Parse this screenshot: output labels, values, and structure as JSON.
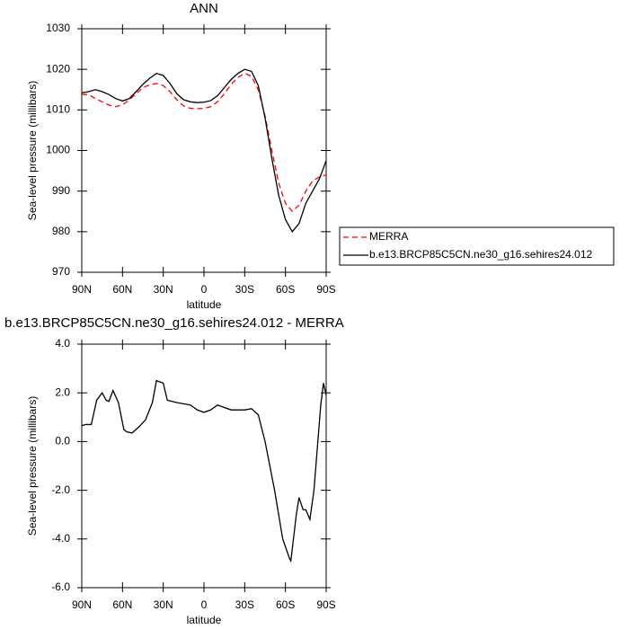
{
  "chart_data": [
    {
      "type": "line",
      "title": "ANN",
      "x_label": "latitude",
      "y_label": "Sea-level pressure (millibars)",
      "x": [
        90,
        85,
        80,
        75,
        70,
        65,
        60,
        55,
        50,
        45,
        40,
        35,
        30,
        25,
        20,
        15,
        10,
        5,
        0,
        -5,
        -10,
        -15,
        -20,
        -25,
        -30,
        -35,
        -40,
        -45,
        -50,
        -55,
        -60,
        -65,
        -70,
        -75,
        -80,
        -85,
        -90
      ],
      "xlim": [
        90,
        -90
      ],
      "xticks": [
        {
          "value": 90,
          "label": "90N"
        },
        {
          "value": 60,
          "label": "60N"
        },
        {
          "value": 30,
          "label": "30N"
        },
        0,
        {
          "value": -30,
          "label": "30S"
        },
        {
          "value": -60,
          "label": "60S"
        },
        {
          "value": -90,
          "label": "90S"
        }
      ],
      "ylim": [
        970,
        1030
      ],
      "yticks": [
        970,
        980,
        990,
        1000,
        1010,
        1020,
        1030
      ],
      "legend": "right",
      "series": [
        {
          "name": "MERRA",
          "color": "#ff0000",
          "dash": true,
          "values": [
            1013.8,
            1013.8,
            1012.8,
            1012,
            1011.2,
            1010.8,
            1011.2,
            1012.5,
            1014,
            1015.5,
            1016.2,
            1016.5,
            1016,
            1014.5,
            1012.5,
            1011,
            1010.4,
            1010.3,
            1010.4,
            1010.8,
            1012,
            1014,
            1016.3,
            1018,
            1019,
            1018.3,
            1015,
            1008.5,
            1000,
            992,
            987,
            985,
            986.5,
            990,
            992.5,
            993.5,
            994
          ]
        },
        {
          "name": "b.e13.BRCP85C5CN.ne30_g16.sehires24.012",
          "color": "#000000",
          "dash": false,
          "values": [
            1014.2,
            1014.5,
            1015,
            1014.5,
            1013.8,
            1012.8,
            1012.2,
            1012.8,
            1014.5,
            1016.3,
            1017.8,
            1019,
            1018.5,
            1016.5,
            1014,
            1012.5,
            1012,
            1011.8,
            1011.9,
            1012.3,
            1013.5,
            1015.5,
            1017.5,
            1019,
            1020,
            1019.5,
            1016,
            1008,
            998,
            989,
            983,
            980,
            982,
            987,
            990,
            993,
            997.5
          ]
        }
      ]
    },
    {
      "type": "line",
      "title": "b.e13.BRCP85C5CN.ne30_g16.sehires24.012 - MERRA",
      "x_label": "latitude",
      "y_label": "Sea-level pressure (millibars)",
      "x": [
        90,
        87,
        83,
        79,
        75,
        72,
        70,
        67,
        63,
        59,
        57,
        53,
        48,
        43,
        38,
        35,
        30,
        27,
        20,
        10,
        5,
        0,
        -5,
        -10,
        -15,
        -20,
        -30,
        -35,
        -40,
        -45,
        -52,
        -58,
        -63,
        -64,
        -68,
        -70,
        -73,
        -75,
        -78,
        -81,
        -86,
        -88,
        -90
      ],
      "xlim": [
        90,
        -90
      ],
      "xticks": [
        {
          "value": 90,
          "label": "90N"
        },
        {
          "value": 60,
          "label": "60N"
        },
        {
          "value": 30,
          "label": "30N"
        },
        0,
        {
          "value": -30,
          "label": "30S"
        },
        {
          "value": -60,
          "label": "60S"
        },
        {
          "value": -90,
          "label": "90S"
        }
      ],
      "ylim": [
        -6,
        4
      ],
      "yticks": [
        {
          "value": -6,
          "label": "-6.0"
        },
        {
          "value": -4,
          "label": "-4.0"
        },
        {
          "value": -2,
          "label": "-2.0"
        },
        {
          "value": 0,
          "label": "0.0"
        },
        {
          "value": 2,
          "label": "2.0"
        },
        {
          "value": 4,
          "label": "4.0"
        }
      ],
      "series": [
        {
          "color": "#000000",
          "dash": false,
          "values": [
            0.65,
            0.7,
            0.7,
            1.7,
            2.0,
            1.7,
            1.65,
            2.1,
            1.6,
            0.5,
            0.4,
            0.35,
            0.6,
            0.9,
            1.6,
            2.5,
            2.4,
            1.7,
            1.6,
            1.5,
            1.3,
            1.2,
            1.3,
            1.5,
            1.4,
            1.3,
            1.3,
            1.35,
            1.1,
            0,
            -2,
            -4,
            -4.8,
            -4.9,
            -3,
            -2.3,
            -2.8,
            -2.8,
            -3.2,
            -2,
            1.5,
            2.4,
            1.9
          ]
        }
      ]
    }
  ]
}
